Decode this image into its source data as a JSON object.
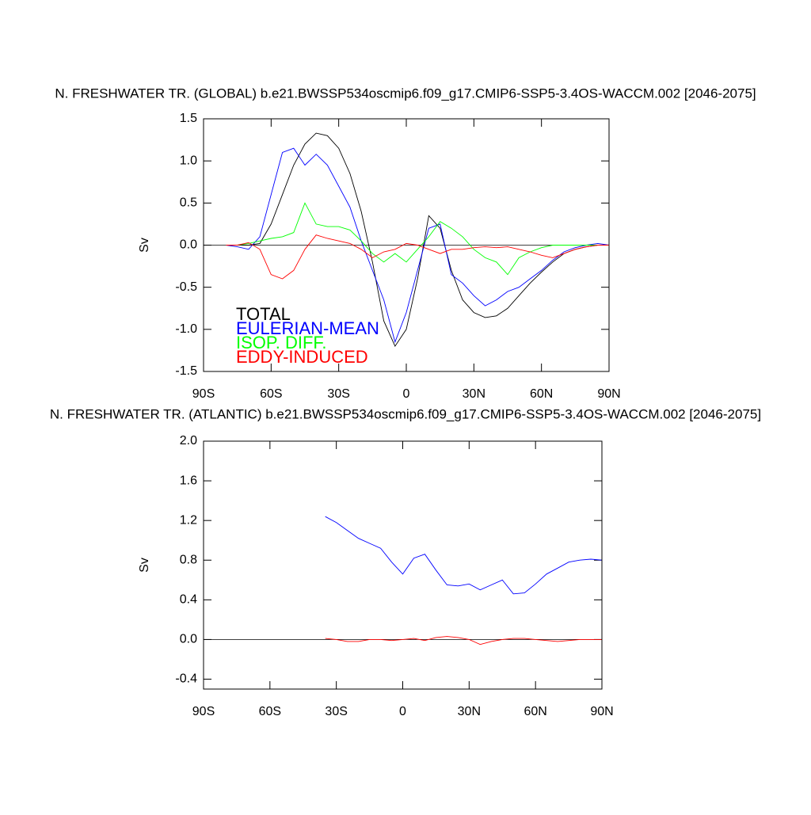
{
  "chart_data": [
    {
      "type": "line",
      "title": "N. FRESHWATER TR. (GLOBAL) b.e21.BWSSP534oscmip6.f09_g17.CMIP6-SSP5-3.4OS-WACCM.002 [2046-2075]",
      "ylabel": "Sv",
      "xlim": [
        -90,
        90
      ],
      "xticks": [
        {
          "value": -90,
          "label": "90S"
        },
        {
          "value": -60,
          "label": "60S"
        },
        {
          "value": -30,
          "label": "30S"
        },
        0,
        {
          "value": 30,
          "label": "30N"
        },
        {
          "value": 60,
          "label": "60N"
        },
        {
          "value": 90,
          "label": "90N"
        }
      ],
      "ylim": [
        -1.5,
        1.5
      ],
      "yticks": [
        1.5,
        {
          "value": 1,
          "label": "1.0"
        },
        0.5,
        {
          "value": 0,
          "label": "0.0"
        },
        -0.5,
        {
          "value": -1,
          "label": "-1.0"
        },
        -1.5
      ],
      "x": [
        -80,
        -75,
        -70,
        -65,
        -60,
        -55,
        -50,
        -45,
        -40,
        -35,
        -30,
        -25,
        -20,
        -15,
        -10,
        -5,
        0,
        5,
        10,
        15,
        20,
        25,
        30,
        35,
        40,
        45,
        50,
        55,
        60,
        65,
        70,
        75,
        80,
        85,
        90
      ],
      "series": [
        {
          "name": "TOTAL",
          "color": "#000000",
          "values": [
            0,
            0,
            0,
            0.02,
            0.25,
            0.6,
            0.95,
            1.2,
            1.33,
            1.3,
            1.15,
            0.85,
            0.4,
            -0.2,
            -0.9,
            -1.2,
            -1.0,
            -0.4,
            0.35,
            0.2,
            -0.3,
            -0.65,
            -0.8,
            -0.86,
            -0.84,
            -0.75,
            -0.6,
            -0.45,
            -0.32,
            -0.2,
            -0.1,
            -0.05,
            -0.02,
            0,
            0
          ]
        },
        {
          "name": "EULERIAN-MEAN",
          "color": "#0000ff",
          "values": [
            0,
            -0.02,
            -0.05,
            0.1,
            0.6,
            1.1,
            1.15,
            0.95,
            1.08,
            0.95,
            0.7,
            0.45,
            0.05,
            -0.3,
            -0.65,
            -1.15,
            -0.8,
            -0.3,
            0.2,
            0.25,
            -0.35,
            -0.45,
            -0.6,
            -0.72,
            -0.65,
            -0.55,
            -0.5,
            -0.4,
            -0.3,
            -0.18,
            -0.08,
            -0.03,
            0,
            0.02,
            0
          ]
        },
        {
          "name": "ISOP. DIFF.",
          "color": "#00ff00",
          "values": [
            0,
            0,
            0.02,
            0.05,
            0.08,
            0.1,
            0.15,
            0.5,
            0.25,
            0.22,
            0.22,
            0.18,
            0.05,
            -0.1,
            -0.2,
            -0.1,
            -0.2,
            -0.05,
            0.1,
            0.28,
            0.2,
            0.1,
            -0.05,
            -0.15,
            -0.2,
            -0.35,
            -0.15,
            -0.08,
            -0.03,
            0,
            0,
            0,
            0,
            0,
            0
          ]
        },
        {
          "name": "EDDY-INDUCED",
          "color": "#ff0000",
          "values": [
            0,
            0,
            0.03,
            -0.05,
            -0.35,
            -0.4,
            -0.3,
            -0.05,
            0.12,
            0.08,
            0.05,
            0.02,
            -0.05,
            -0.15,
            -0.08,
            -0.05,
            0.02,
            0,
            -0.05,
            -0.1,
            -0.05,
            -0.05,
            -0.03,
            -0.02,
            -0.03,
            -0.02,
            -0.05,
            -0.08,
            -0.12,
            -0.15,
            -0.1,
            -0.05,
            -0.02,
            0,
            0
          ]
        }
      ]
    },
    {
      "type": "line",
      "title": "N. FRESHWATER TR. (ATLANTIC) b.e21.BWSSP534oscmip6.f09_g17.CMIP6-SSP5-3.4OS-WACCM.002 [2046-2075]",
      "ylabel": "Sv",
      "xlim": [
        -90,
        90
      ],
      "xticks": [
        {
          "value": -90,
          "label": "90S"
        },
        {
          "value": -60,
          "label": "60S"
        },
        {
          "value": -30,
          "label": "30S"
        },
        0,
        {
          "value": 30,
          "label": "30N"
        },
        {
          "value": 60,
          "label": "60N"
        },
        {
          "value": 90,
          "label": "90N"
        }
      ],
      "ylim": [
        -0.5,
        2.0
      ],
      "yticks": [
        {
          "value": 2,
          "label": "2.0"
        },
        1.6,
        1.2,
        0.8,
        0.4,
        {
          "value": 0,
          "label": "0.0"
        },
        -0.4
      ],
      "x": [
        -35,
        -30,
        -25,
        -20,
        -15,
        -10,
        -5,
        0,
        5,
        10,
        15,
        20,
        25,
        30,
        35,
        40,
        45,
        50,
        55,
        60,
        65,
        70,
        75,
        80,
        85,
        90
      ],
      "series": [
        {
          "color": "#0000ff",
          "values": [
            1.24,
            1.18,
            1.1,
            1.02,
            0.97,
            0.92,
            0.78,
            0.66,
            0.82,
            0.86,
            0.7,
            0.55,
            0.54,
            0.56,
            0.5,
            0.55,
            0.6,
            0.46,
            0.47,
            0.56,
            0.66,
            0.72,
            0.78,
            0.8,
            0.81,
            0.8
          ]
        },
        {
          "color": "#ff0000",
          "values": [
            0.01,
            0,
            -0.02,
            -0.02,
            0,
            0,
            -0.01,
            0,
            0.01,
            -0.01,
            0.02,
            0.03,
            0.02,
            0,
            -0.05,
            -0.02,
            0,
            0.01,
            0.01,
            0,
            -0.01,
            -0.02,
            -0.01,
            0,
            0,
            0
          ]
        }
      ]
    }
  ]
}
